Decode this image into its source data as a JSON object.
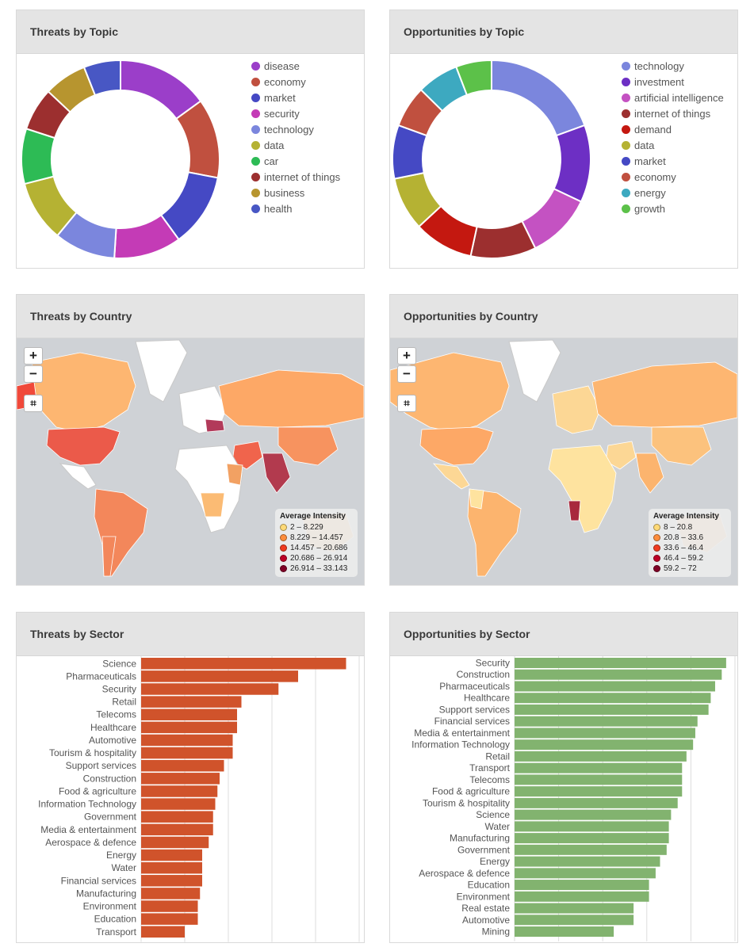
{
  "panels": {
    "threats_topic": {
      "title": "Threats by Topic"
    },
    "opps_topic": {
      "title": "Opportunities by Topic"
    },
    "threats_country": {
      "title": "Threats by Country"
    },
    "opps_country": {
      "title": "Opportunities by Country"
    },
    "threats_sector": {
      "title": "Threats by Sector"
    },
    "opps_sector": {
      "title": "Opportunities by Sector"
    }
  },
  "map_controls": {
    "zoom_in": "+",
    "zoom_out": "−",
    "crop": "⌗"
  },
  "map_legends": {
    "threats": {
      "title": "Average Intensity",
      "items": [
        {
          "label": "2 – 8.229",
          "color": "#fed976"
        },
        {
          "label": "8.229 – 14.457",
          "color": "#fd8d3c"
        },
        {
          "label": "14.457 – 20.686",
          "color": "#f03b20"
        },
        {
          "label": "20.686 – 26.914",
          "color": "#bd0026"
        },
        {
          "label": "26.914 – 33.143",
          "color": "#800026"
        }
      ]
    },
    "opportunities": {
      "title": "Average Intensity",
      "items": [
        {
          "label": "8 – 20.8",
          "color": "#fed976"
        },
        {
          "label": "20.8 – 33.6",
          "color": "#fd8d3c"
        },
        {
          "label": "33.6 – 46.4",
          "color": "#f03b20"
        },
        {
          "label": "46.4 – 59.2",
          "color": "#bd0026"
        },
        {
          "label": "59.2 – 72",
          "color": "#800026"
        }
      ]
    }
  },
  "chart_data": [
    {
      "type": "pie",
      "title": "Threats by Topic",
      "donut": true,
      "legend": "right",
      "labels": [
        "disease",
        "economy",
        "market",
        "security",
        "technology",
        "data",
        "car",
        "internet of things",
        "business",
        "health"
      ],
      "values": [
        15,
        13,
        12,
        11,
        10,
        10,
        9,
        7,
        7,
        6
      ],
      "colors": [
        "#9b3ec9",
        "#c0503f",
        "#4549c4",
        "#c43bb6",
        "#7b86dd",
        "#b5b233",
        "#2dbb55",
        "#9c2f2f",
        "#b7952f",
        "#4857c4"
      ]
    },
    {
      "type": "pie",
      "title": "Opportunities by Topic",
      "donut": true,
      "legend": "right",
      "labels": [
        "technology",
        "investment",
        "artificial intelligence",
        "internet of things",
        "demand",
        "data",
        "market",
        "economy",
        "energy",
        "growth"
      ],
      "values": [
        20,
        13,
        11,
        11,
        10,
        9,
        9,
        7,
        7,
        6
      ],
      "colors": [
        "#7b86dd",
        "#6d2fc4",
        "#c452c2",
        "#9c2f2f",
        "#c41810",
        "#b5b233",
        "#4549c4",
        "#c0503f",
        "#3da9c0",
        "#5cc149"
      ]
    },
    {
      "type": "bar",
      "orientation": "horizontal",
      "title": "Threats by Sector",
      "color": "#d0532b",
      "categories": [
        "Science",
        "Pharmaceuticals",
        "Security",
        "Retail",
        "Telecoms",
        "Healthcare",
        "Automotive",
        "Tourism & hospitality",
        "Support services",
        "Construction",
        "Food & agriculture",
        "Information Technology",
        "Government",
        "Media & entertainment",
        "Aerospace & defence",
        "Energy",
        "Water",
        "Financial services",
        "Manufacturing",
        "Environment",
        "Education",
        "Transport"
      ],
      "values": [
        94,
        72,
        63,
        46,
        44,
        44,
        42,
        42,
        38,
        36,
        35,
        34,
        33,
        33,
        31,
        28,
        28,
        28,
        27,
        26,
        26,
        20
      ],
      "xlim": [
        0,
        100
      ]
    },
    {
      "type": "bar",
      "orientation": "horizontal",
      "title": "Opportunities by Sector",
      "color": "#82b36f",
      "categories": [
        "Security",
        "Construction",
        "Pharmaceuticals",
        "Healthcare",
        "Support services",
        "Financial services",
        "Media & entertainment",
        "Information Technology",
        "Retail",
        "Transport",
        "Telecoms",
        "Food & agriculture",
        "Tourism & hospitality",
        "Science",
        "Water",
        "Manufacturing",
        "Government",
        "Energy",
        "Aerospace & defence",
        "Education",
        "Environment",
        "Real estate",
        "Automotive",
        "Mining"
      ],
      "values": [
        96,
        94,
        91,
        89,
        88,
        83,
        82,
        81,
        78,
        76,
        76,
        76,
        74,
        71,
        70,
        70,
        69,
        66,
        64,
        61,
        61,
        54,
        54,
        45
      ],
      "xlim": [
        0,
        100
      ]
    }
  ]
}
